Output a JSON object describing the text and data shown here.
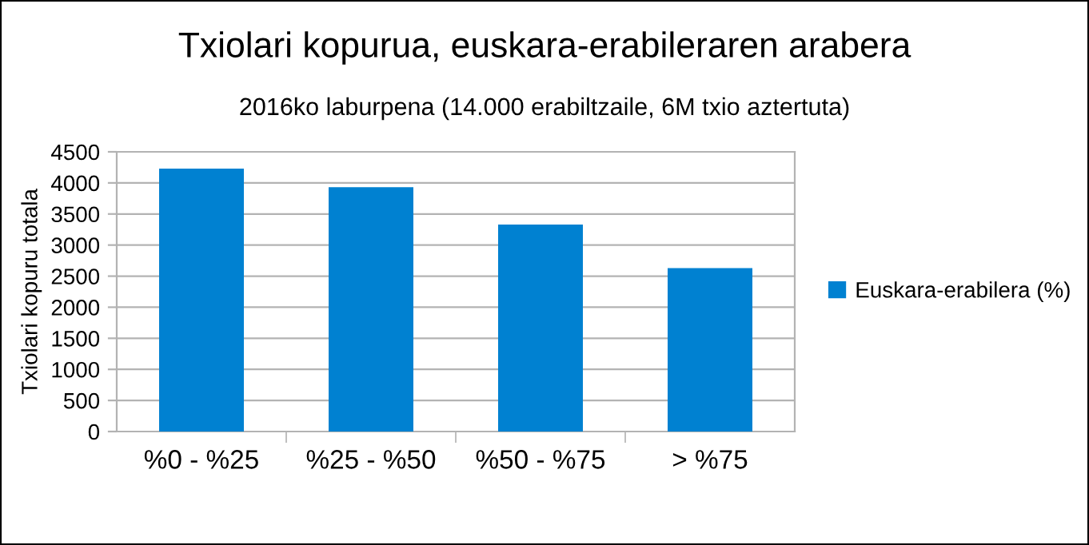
{
  "chart_data": {
    "type": "bar",
    "title": "Txiolari kopurua, euskara-erabileraren arabera",
    "subtitle": "2016ko laburpena (14.000 erabiltzaile, 6M txio aztertuta)",
    "ylabel": "Txiolari kopuru totala",
    "categories": [
      "%0 - %25",
      "%25 - %50",
      "%50 - %75",
      "> %75"
    ],
    "series": [
      {
        "name": "Euskara-erabilera (%)",
        "color": "#0081d1",
        "values": [
          4230,
          3930,
          3330,
          2630
        ]
      }
    ],
    "ylim": [
      0,
      4500
    ],
    "yticks": [
      0,
      500,
      1000,
      1500,
      2000,
      2500,
      3000,
      3500,
      4000,
      4500
    ],
    "grid": "y",
    "legend": "right"
  }
}
